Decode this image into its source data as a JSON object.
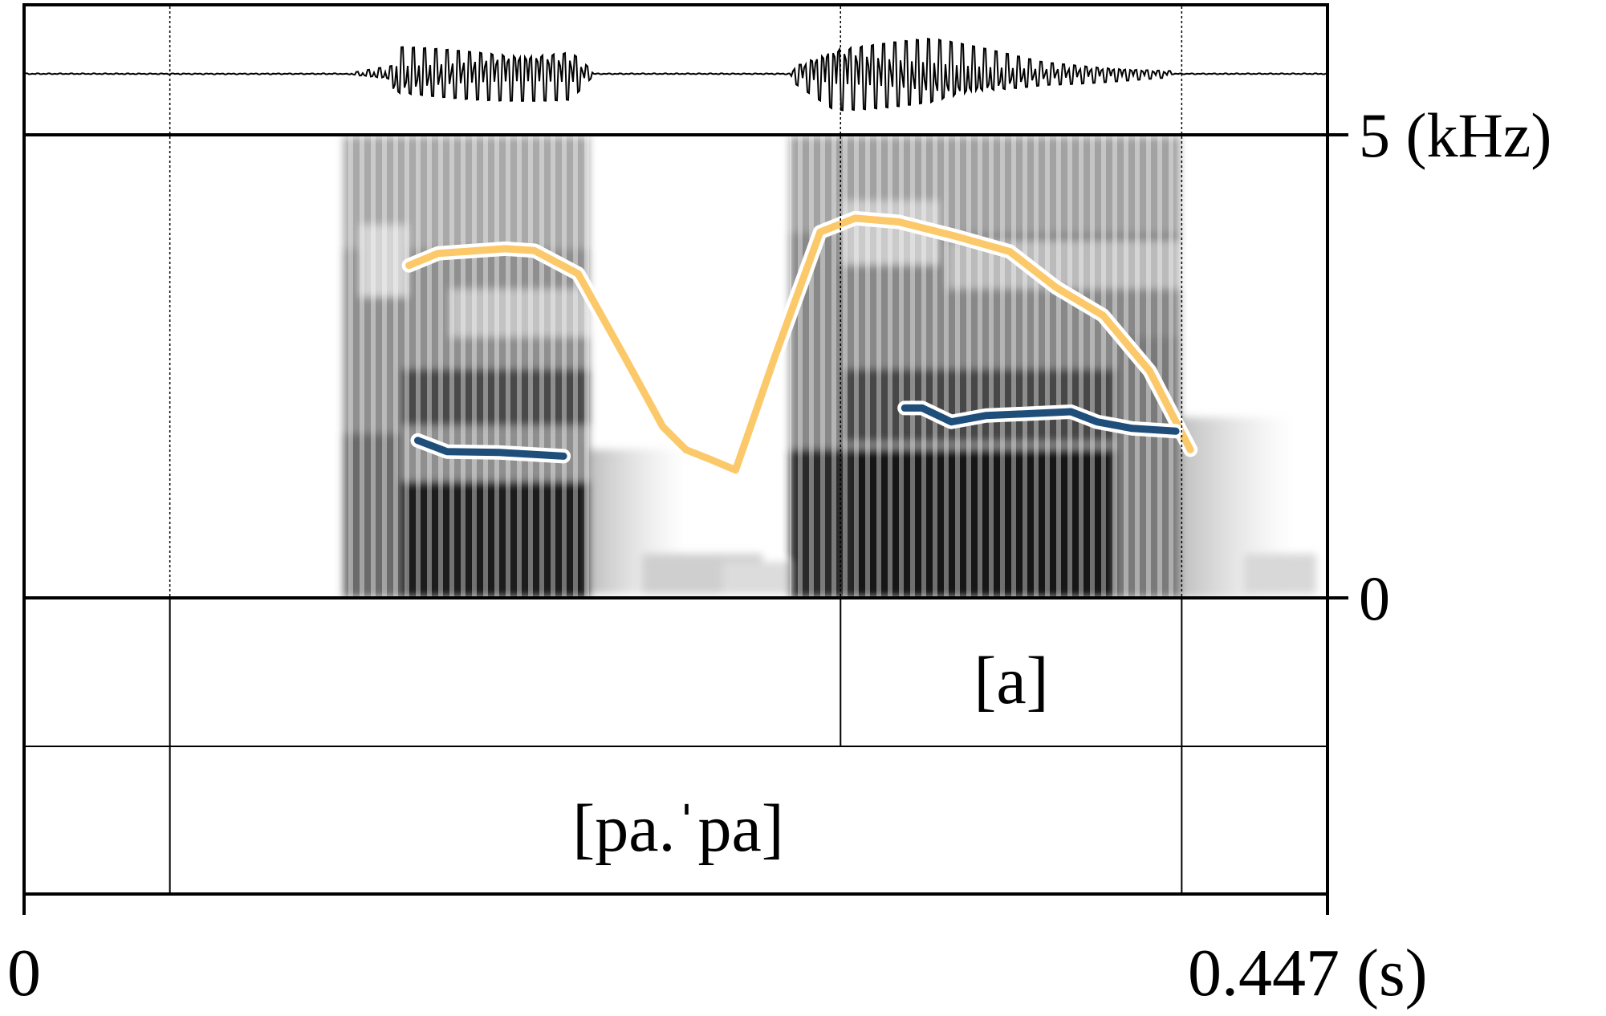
{
  "frequency_axis": {
    "max_label": "5 (kHz)",
    "min_label": "0",
    "max_khz": 5,
    "min_khz": 0
  },
  "time_axis": {
    "start_label": "0",
    "end_label": "0.447 (s)",
    "duration_s": 0.447
  },
  "tiers": {
    "segment_tier": {
      "label": "[a]"
    },
    "word_tier": {
      "label": "[pa.ˈpa]"
    }
  },
  "chart_data": {
    "type": "line",
    "xlabel": "(s)",
    "ylabel": "(kHz)",
    "xlim": [
      0,
      0.447
    ],
    "ylim": [
      0,
      5
    ],
    "boundaries_s": [
      0.05,
      0.28,
      0.397
    ],
    "series": [
      {
        "color": "#fcc96a",
        "segments": [
          [
            [
              0.132,
              3.59
            ],
            [
              0.142,
              3.72
            ],
            [
              0.165,
              3.77
            ],
            [
              0.175,
              3.75
            ],
            [
              0.19,
              3.5
            ],
            [
              0.206,
              2.6
            ],
            [
              0.219,
              1.85
            ],
            [
              0.227,
              1.6
            ],
            [
              0.235,
              1.5
            ],
            [
              0.244,
              1.38
            ],
            [
              0.258,
              2.65
            ],
            [
              0.273,
              3.95
            ],
            [
              0.285,
              4.1
            ],
            [
              0.3,
              4.06
            ],
            [
              0.32,
              3.9
            ],
            [
              0.338,
              3.74
            ],
            [
              0.354,
              3.35
            ],
            [
              0.37,
              3.05
            ],
            [
              0.386,
              2.45
            ],
            [
              0.4,
              1.6
            ]
          ]
        ]
      },
      {
        "color": "#1f4e7b",
        "segments": [
          [
            [
              0.135,
              1.7
            ],
            [
              0.145,
              1.58
            ],
            [
              0.163,
              1.57
            ],
            [
              0.185,
              1.53
            ]
          ],
          [
            [
              0.302,
              2.05
            ],
            [
              0.308,
              2.05
            ],
            [
              0.318,
              1.9
            ],
            [
              0.33,
              1.97
            ],
            [
              0.345,
              1.99
            ],
            [
              0.359,
              2.01
            ],
            [
              0.368,
              1.9
            ],
            [
              0.38,
              1.83
            ],
            [
              0.395,
              1.8
            ]
          ]
        ]
      }
    ]
  }
}
